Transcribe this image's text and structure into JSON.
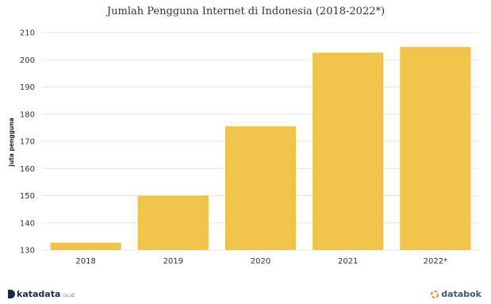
{
  "chart_data": {
    "type": "bar",
    "title": "Jumlah Pengguna Internet di Indonesia (2018-2022*)",
    "xlabel": "",
    "ylabel": "juta pengguna",
    "categories": [
      "2018",
      "2019",
      "2020",
      "2021",
      "2022*"
    ],
    "values": [
      132.7,
      150.0,
      175.5,
      202.6,
      204.7
    ],
    "ylim": [
      130,
      210
    ],
    "yticks": [
      130,
      140,
      150,
      160,
      170,
      180,
      190,
      200,
      210
    ],
    "grid": true,
    "bar_color": "#f0c44c"
  },
  "brands": {
    "left_name": "katadata",
    "left_suffix": ".co.id",
    "right_name": "databok"
  }
}
